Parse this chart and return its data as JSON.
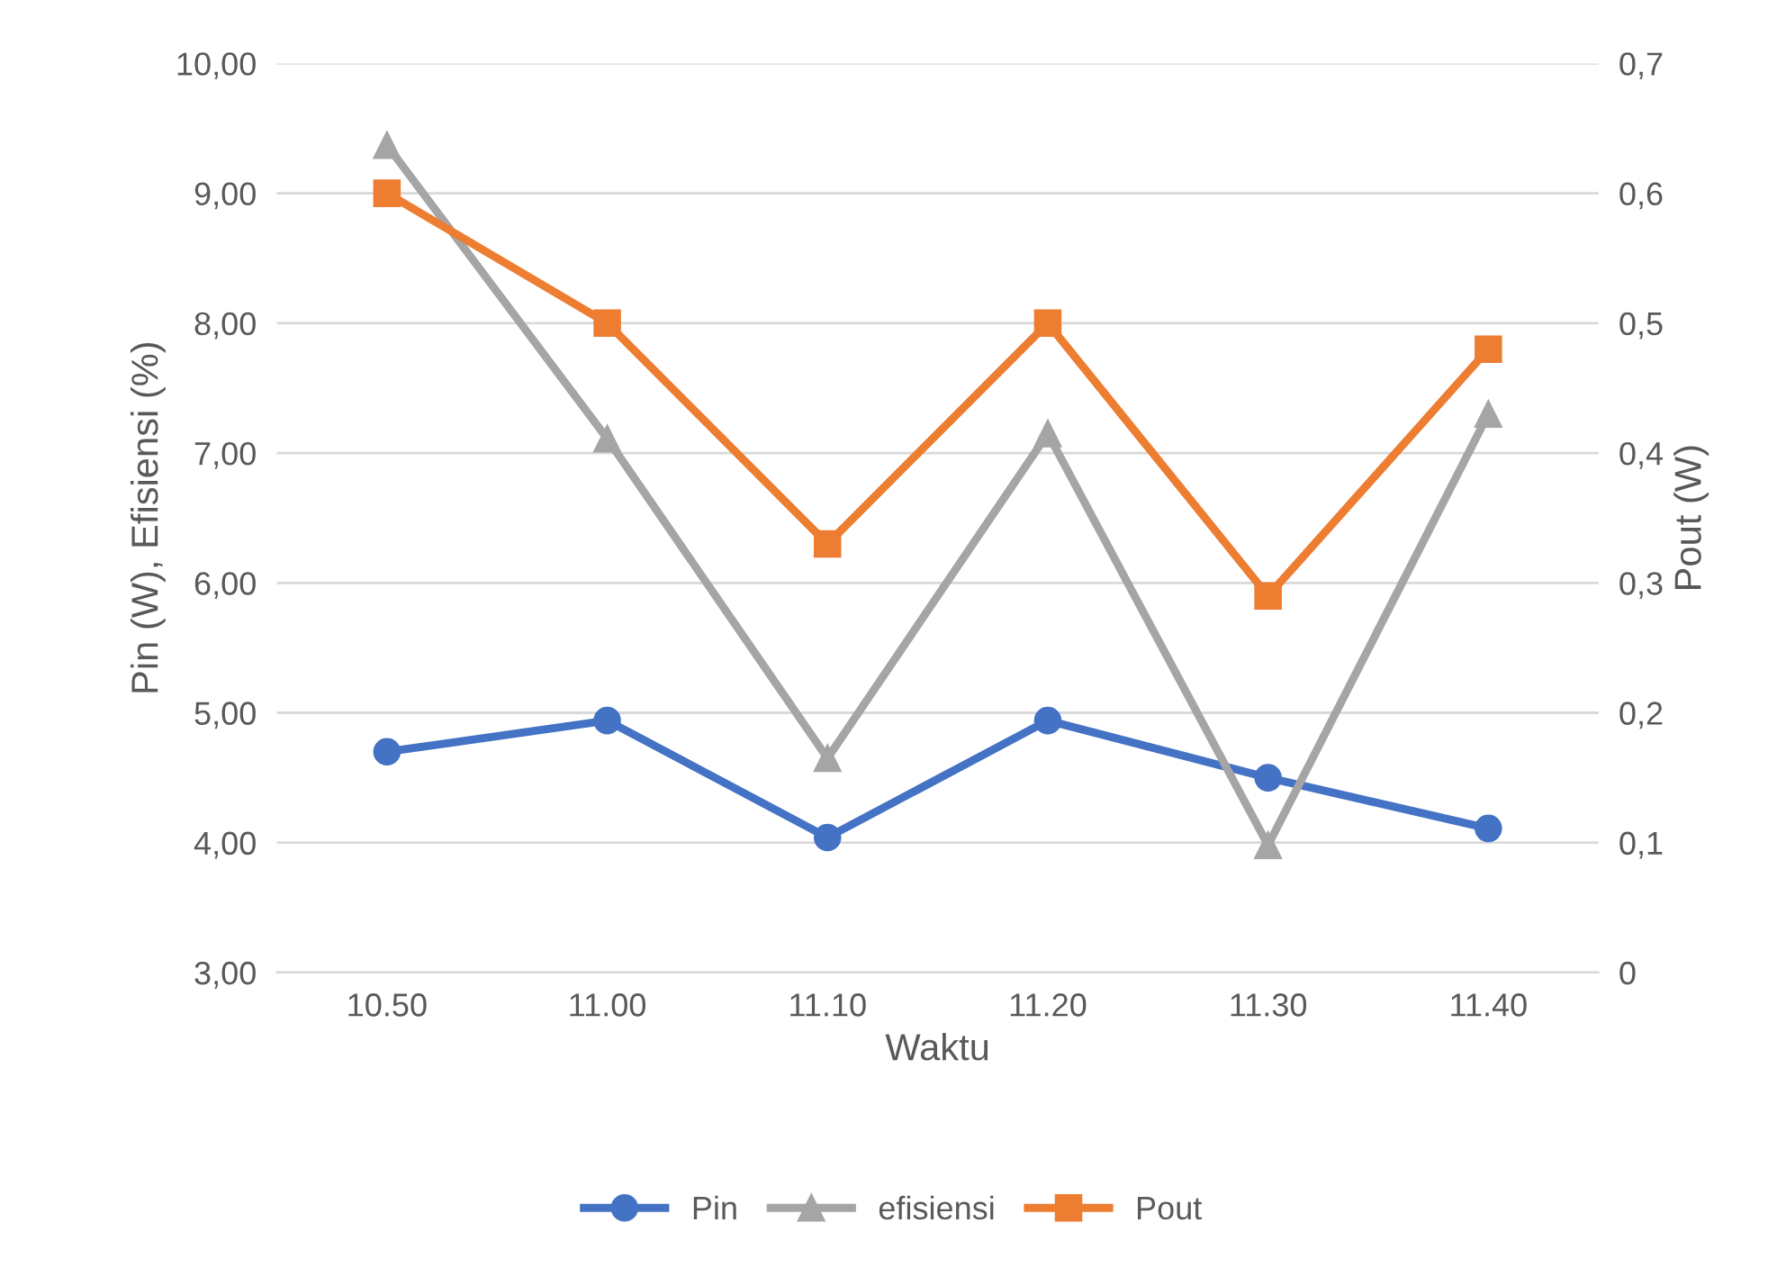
{
  "chart_data": {
    "type": "line",
    "xlabel": "Waktu",
    "ylabel": "Pin (W), Efisiensi (%)",
    "y2label": "Pout (W)",
    "categories": [
      "10.50",
      "11.00",
      "11.10",
      "11.20",
      "11.30",
      "11.40"
    ],
    "series": [
      {
        "name": "Pin",
        "color": "#4472c4",
        "marker": "circle",
        "values": [
          4.7,
          4.94,
          4.04,
          4.94,
          4.5,
          4.11
        ]
      },
      {
        "name": "efisiensi",
        "color": "#a5a5a5",
        "marker": "triangle",
        "values": [
          9.37,
          7.11,
          4.65,
          7.15,
          3.98,
          7.3
        ]
      },
      {
        "name": "Pout",
        "color": "#ed7d31",
        "marker": "square",
        "axis": "y2",
        "values": [
          0.6,
          0.5,
          0.33,
          0.5,
          0.29,
          0.48
        ]
      }
    ],
    "ylim": [
      3,
      10
    ],
    "yticks": [
      {
        "value": 3,
        "label": "3,00"
      },
      {
        "value": 4,
        "label": "4,00"
      },
      {
        "value": 5,
        "label": "5,00"
      },
      {
        "value": 6,
        "label": "6,00"
      },
      {
        "value": 7,
        "label": "7,00"
      },
      {
        "value": 8,
        "label": "8,00"
      },
      {
        "value": 9,
        "label": "9,00"
      },
      {
        "value": 10,
        "label": "10,00"
      }
    ],
    "y2lim": [
      0,
      0.7
    ],
    "y2ticks": [
      0,
      {
        "value": 0.1,
        "label": "0,1"
      },
      {
        "value": 0.2,
        "label": "0,2"
      },
      {
        "value": 0.3,
        "label": "0,3"
      },
      {
        "value": 0.4,
        "label": "0,4"
      },
      {
        "value": 0.5,
        "label": "0,5"
      },
      {
        "value": 0.6,
        "label": "0,6"
      },
      {
        "value": 0.7,
        "label": "0,7"
      }
    ],
    "grid": "y",
    "legend": "bottom",
    "line_style": "solid"
  }
}
